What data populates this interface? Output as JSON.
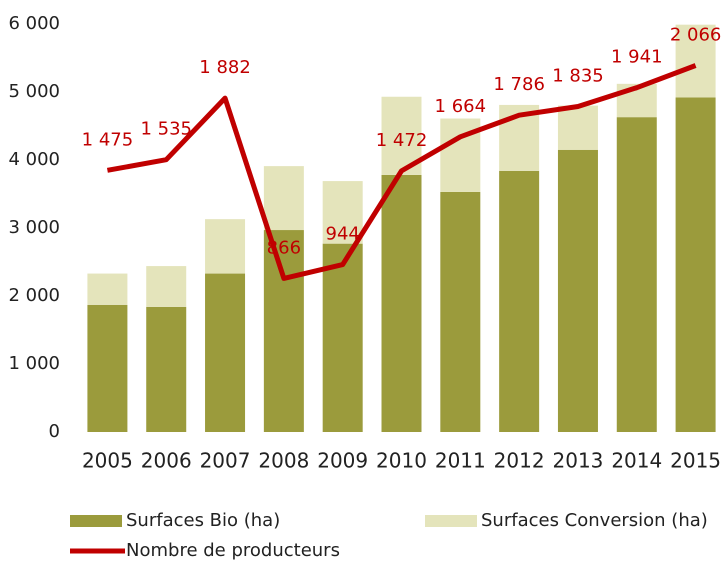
{
  "chart_data": {
    "type": "bar",
    "stacked": true,
    "categories": [
      "2005",
      "2006",
      "2007",
      "2008",
      "2009",
      "2010",
      "2011",
      "2012",
      "2013",
      "2014",
      "2015"
    ],
    "series": [
      {
        "name": "Surfaces Bio (ha)",
        "type": "bar",
        "color": "#9b9b3c",
        "values": [
          1870,
          1840,
          2330,
          2970,
          2770,
          3780,
          3530,
          3840,
          4150,
          4630,
          4920
        ]
      },
      {
        "name": "Surfaces Conversion (ha)",
        "type": "bar",
        "color": "#e4e4bb",
        "values": [
          460,
          600,
          800,
          940,
          920,
          1150,
          1080,
          970,
          650,
          490,
          1070
        ]
      },
      {
        "name": "Nombre de producteurs",
        "type": "line",
        "axis": "y2",
        "color": "#c00000",
        "values": [
          1475,
          1535,
          1882,
          866,
          944,
          1472,
          1664,
          1786,
          1835,
          1941,
          2066
        ],
        "value_labels": [
          "1 475",
          "1 535",
          "1 882",
          "866",
          "944",
          "1 472",
          "1 664",
          "1 786",
          "1 835",
          "1 941",
          "2 066"
        ]
      }
    ],
    "ylim": [
      0,
      6000
    ],
    "yticks": [
      0,
      {
        "value": 1000,
        "label": "1 000"
      },
      {
        "value": 2000,
        "label": "2 000"
      },
      {
        "value": 3000,
        "label": "3 000"
      },
      {
        "value": 4000,
        "label": "4 000"
      },
      {
        "value": 5000,
        "label": "5 000"
      },
      {
        "value": 6000,
        "label": "6 000"
      }
    ],
    "y2lim": [
      0,
      2300
    ],
    "grid": false,
    "legend": "bottom"
  }
}
